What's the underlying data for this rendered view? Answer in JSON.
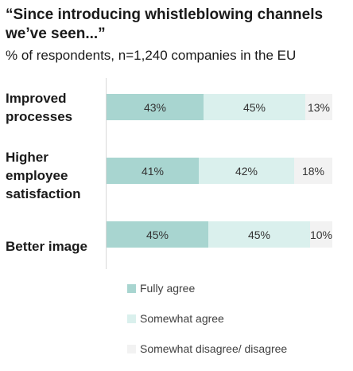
{
  "chart_data": {
    "type": "bar",
    "orientation": "horizontal",
    "stacked": true,
    "title": "“Since introducing whistleblowing channels we’ve seen...”",
    "subtitle": "% of respondents, n=1,240 companies in the EU",
    "categories": [
      "Improved processes",
      "Higher employee satisfaction",
      "Better image"
    ],
    "category_lines": [
      [
        "Improved",
        "processes"
      ],
      [
        "Higher",
        "employee",
        "satisfaction"
      ],
      [
        "Better image"
      ]
    ],
    "series": [
      {
        "name": "Fully agree",
        "values": [
          43,
          41,
          45
        ],
        "color": "#a8d5d0"
      },
      {
        "name": "Somewhat agree",
        "values": [
          45,
          42,
          45
        ],
        "color": "#daf0ed"
      },
      {
        "name": "Somewhat disagree/ disagree",
        "values": [
          13,
          18,
          10
        ],
        "color": "#f2f2f2"
      }
    ],
    "data_labels": [
      [
        "43%",
        "45%",
        "13%"
      ],
      [
        "41%",
        "42%",
        "18%"
      ],
      [
        "45%",
        "45%",
        "10%"
      ]
    ],
    "xlim": [
      0,
      100
    ],
    "grid": false,
    "legend_position": "bottom"
  }
}
